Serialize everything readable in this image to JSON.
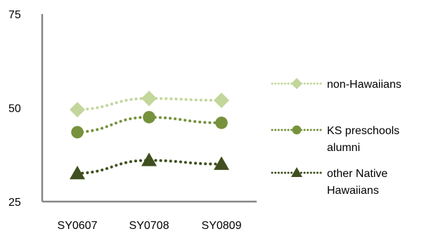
{
  "chart_data": {
    "type": "line",
    "categories": [
      "SY0607",
      "SY0708",
      "SY0809"
    ],
    "ylim": [
      25,
      75
    ],
    "yticks": [
      "75",
      "50",
      "25"
    ],
    "grid": false,
    "legend_position": "right",
    "series": [
      {
        "name": "non-Hawaiians",
        "legend_lines": [
          "non-Hawaiians"
        ],
        "values": [
          49.5,
          52.5,
          52
        ],
        "color": "#c3d69b",
        "marker": "diamond"
      },
      {
        "name": "KS preschools alumni",
        "legend_lines": [
          "KS preschools",
          "alumni"
        ],
        "values": [
          43.5,
          47.5,
          46
        ],
        "color": "#76923c",
        "marker": "circle"
      },
      {
        "name": "other Native Hawaiians",
        "legend_lines": [
          "other Native",
          "Hawaiians"
        ],
        "values": [
          32.5,
          36,
          35
        ],
        "color": "#3f4f1f",
        "marker": "triangle"
      }
    ]
  }
}
